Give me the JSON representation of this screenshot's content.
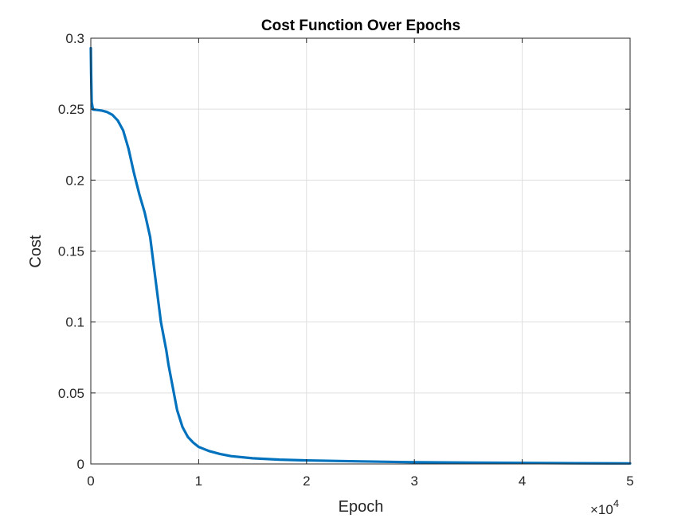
{
  "chart_data": {
    "type": "line",
    "title": "Cost Function Over Epochs",
    "xlabel": "Epoch",
    "ylabel": "Cost",
    "x_exponent_base": "×10",
    "x_exponent_power": "4",
    "xlim": [
      0,
      5
    ],
    "ylim": [
      0,
      0.3
    ],
    "x_unit_multiplier": 10000,
    "xticks": [
      0,
      1,
      2,
      3,
      4,
      5
    ],
    "xtick_labels": [
      "0",
      "1",
      "2",
      "3",
      "4",
      "5"
    ],
    "yticks": [
      0,
      0.05,
      0.1,
      0.15,
      0.2,
      0.25,
      0.3
    ],
    "ytick_labels": [
      "0",
      "0.05",
      "0.1",
      "0.15",
      "0.2",
      "0.25",
      "0.3"
    ],
    "grid": true,
    "series": [
      {
        "color": "#0072BD",
        "x": [
          0,
          0.003,
          0.008,
          0.02,
          0.05,
          0.1,
          0.15,
          0.2,
          0.25,
          0.3,
          0.35,
          0.4,
          0.45,
          0.5,
          0.55,
          0.6,
          0.65,
          0.7,
          0.72,
          0.75,
          0.78,
          0.8,
          0.85,
          0.9,
          0.95,
          1.0,
          1.1,
          1.2,
          1.3,
          1.5,
          1.75,
          2.0,
          2.5,
          3.0,
          3.5,
          4.0,
          4.5,
          5.0
        ],
        "y": [
          0.293,
          0.275,
          0.255,
          0.2497,
          0.2495,
          0.249,
          0.248,
          0.246,
          0.242,
          0.235,
          0.222,
          0.205,
          0.19,
          0.177,
          0.16,
          0.13,
          0.1,
          0.08,
          0.07,
          0.058,
          0.046,
          0.038,
          0.026,
          0.019,
          0.015,
          0.012,
          0.009,
          0.007,
          0.0055,
          0.004,
          0.003,
          0.0025,
          0.0018,
          0.0012,
          0.0009,
          0.0007,
          0.0005,
          0.0004
        ]
      }
    ]
  }
}
